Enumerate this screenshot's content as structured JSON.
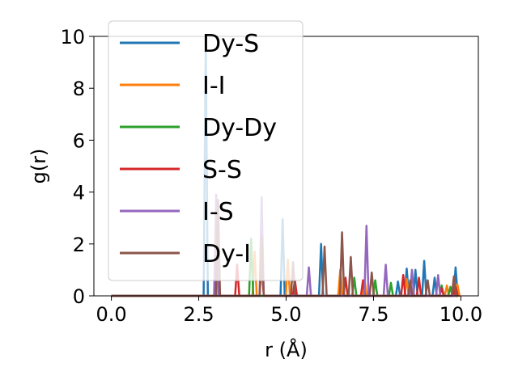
{
  "chart_data": {
    "type": "line",
    "title": "",
    "xlabel": "r (Å)",
    "ylabel": "g(r)",
    "xlim": [
      -0.5,
      10.5
    ],
    "ylim": [
      0,
      10
    ],
    "x_ticks": [
      0.0,
      2.5,
      5.0,
      7.5,
      10.0
    ],
    "x_tick_labels": [
      "0.0",
      "2.5",
      "5.0",
      "7.5",
      "10.0"
    ],
    "y_ticks": [
      0,
      2,
      4,
      6,
      8,
      10
    ],
    "y_tick_labels": [
      "0",
      "2",
      "4",
      "6",
      "8",
      "10"
    ],
    "grid": false,
    "legend_position": "upper-left",
    "x_range": [
      0.0,
      9.9
    ],
    "series": [
      {
        "name": "Dy-S",
        "color": "#1f77b4",
        "peaks": [
          [
            2.7,
            9.8
          ],
          [
            4.9,
            2.95
          ],
          [
            6.0,
            2.0
          ],
          [
            8.2,
            0.55
          ],
          [
            8.45,
            1.05
          ],
          [
            8.7,
            1.0
          ],
          [
            8.95,
            1.35
          ],
          [
            9.25,
            0.7
          ],
          [
            9.85,
            1.1
          ]
        ]
      },
      {
        "name": "I-I",
        "color": "#ff7f0e",
        "peaks": [
          [
            4.1,
            1.7
          ],
          [
            5.05,
            1.4
          ],
          [
            6.55,
            1.0
          ],
          [
            7.25,
            0.55
          ],
          [
            8.45,
            0.65
          ],
          [
            9.6,
            0.4
          ],
          [
            9.9,
            0.45
          ]
        ]
      },
      {
        "name": "Dy-Dy",
        "color": "#2ca02c",
        "peaks": [
          [
            4.0,
            2.2
          ],
          [
            6.95,
            0.7
          ],
          [
            7.55,
            0.6
          ],
          [
            8.0,
            0.5
          ],
          [
            9.45,
            0.4
          ],
          [
            9.7,
            0.35
          ]
        ]
      },
      {
        "name": "S-S",
        "color": "#d62728",
        "peaks": [
          [
            3.6,
            1.2
          ],
          [
            4.3,
            1.3
          ],
          [
            5.25,
            0.6
          ],
          [
            6.7,
            0.7
          ],
          [
            7.2,
            0.6
          ],
          [
            8.35,
            0.8
          ],
          [
            8.8,
            0.7
          ],
          [
            9.45,
            0.3
          ],
          [
            9.85,
            0.35
          ]
        ]
      },
      {
        "name": "I-S",
        "color": "#9467bd",
        "peaks": [
          [
            3.0,
            3.9
          ],
          [
            4.3,
            3.8
          ],
          [
            5.65,
            1.1
          ],
          [
            7.3,
            2.7
          ],
          [
            7.85,
            1.2
          ],
          [
            8.6,
            1.0
          ],
          [
            9.35,
            0.8
          ]
        ]
      },
      {
        "name": "Dy-I",
        "color": "#8c564b",
        "peaks": [
          [
            3.05,
            3.7
          ],
          [
            4.3,
            2.3
          ],
          [
            5.2,
            1.3
          ],
          [
            6.1,
            1.9
          ],
          [
            6.6,
            2.45
          ],
          [
            6.85,
            1.5
          ],
          [
            7.45,
            0.9
          ],
          [
            8.55,
            0.6
          ],
          [
            9.05,
            0.6
          ],
          [
            9.8,
            0.75
          ]
        ]
      }
    ]
  }
}
